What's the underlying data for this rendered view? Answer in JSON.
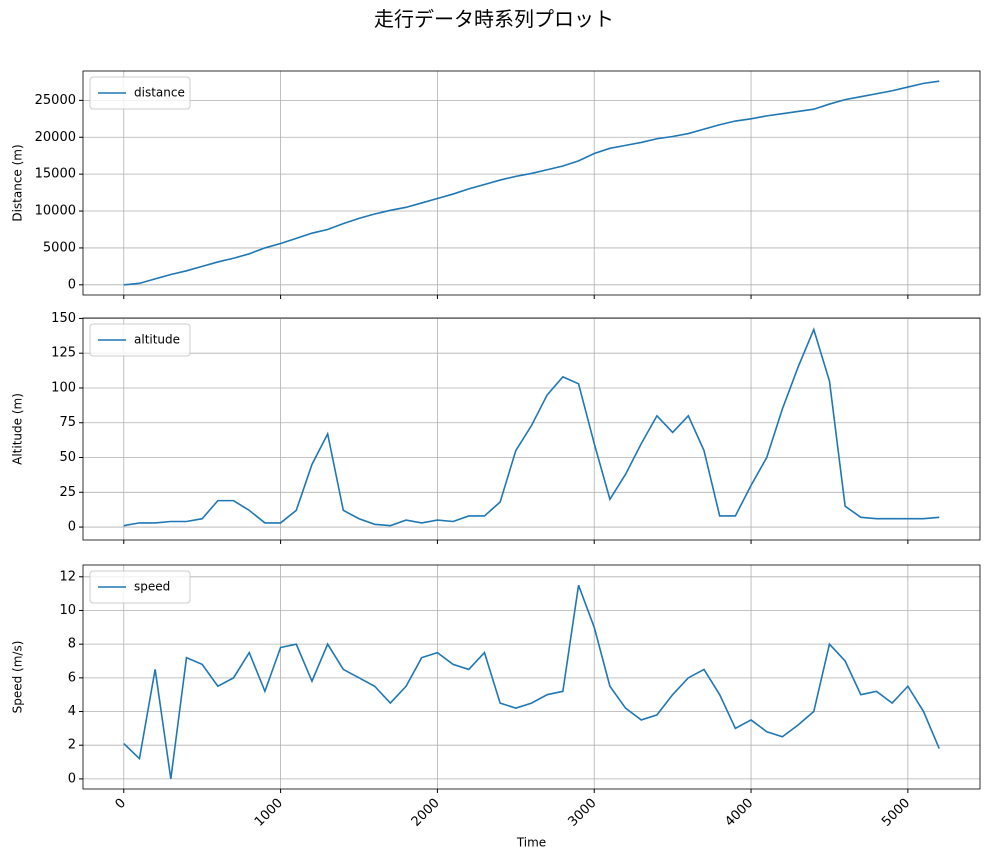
{
  "title": "走行データ時系列プロット",
  "chart_data": [
    {
      "type": "line",
      "ylabel": "Distance (m)",
      "legend": "upper left",
      "grid": true,
      "xlim": [
        -260,
        5460
      ],
      "xticks": [
        0,
        1000,
        2000,
        3000,
        4000,
        5000
      ],
      "ylim": [
        -1380,
        28980
      ],
      "yticks": [
        0,
        5000,
        10000,
        15000,
        20000,
        25000
      ],
      "x": [
        0,
        100,
        200,
        300,
        400,
        500,
        600,
        700,
        800,
        900,
        1000,
        1100,
        1200,
        1300,
        1400,
        1500,
        1600,
        1700,
        1800,
        1900,
        2000,
        2100,
        2200,
        2300,
        2400,
        2500,
        2600,
        2700,
        2800,
        2900,
        3000,
        3100,
        3200,
        3300,
        3400,
        3500,
        3600,
        3700,
        3800,
        3900,
        4000,
        4100,
        4200,
        4300,
        4400,
        4500,
        4600,
        4700,
        4800,
        4900,
        5000,
        5100,
        5200
      ],
      "series": [
        {
          "name": "distance",
          "color": "#1f77b4",
          "values": [
            0,
            200,
            800,
            1400,
            1900,
            2500,
            3100,
            3600,
            4200,
            5000,
            5600,
            6300,
            7000,
            7500,
            8300,
            9000,
            9600,
            10100,
            10500,
            11100,
            11700,
            12300,
            13000,
            13600,
            14200,
            14700,
            15100,
            15600,
            16100,
            16800,
            17800,
            18500,
            18900,
            19300,
            19800,
            20100,
            20500,
            21100,
            21700,
            22200,
            22500,
            22900,
            23200,
            23500,
            23800,
            24500,
            25100,
            25500,
            25900,
            26300,
            26800,
            27300,
            27600
          ]
        }
      ]
    },
    {
      "type": "line",
      "ylabel": "Altitude (m)",
      "legend": "upper left",
      "grid": true,
      "xlim": [
        -260,
        5460
      ],
      "xticks": [
        0,
        1000,
        2000,
        3000,
        4000,
        5000
      ],
      "ylim": [
        -9.3,
        150.3
      ],
      "yticks": [
        0,
        25,
        50,
        75,
        100,
        125,
        150
      ],
      "x": [
        0,
        100,
        200,
        300,
        400,
        500,
        600,
        700,
        800,
        900,
        1000,
        1100,
        1200,
        1300,
        1400,
        1500,
        1600,
        1700,
        1800,
        1900,
        2000,
        2100,
        2200,
        2300,
        2400,
        2500,
        2600,
        2700,
        2800,
        2900,
        3000,
        3100,
        3200,
        3300,
        3400,
        3500,
        3600,
        3700,
        3800,
        3900,
        4000,
        4100,
        4200,
        4300,
        4400,
        4500,
        4600,
        4700,
        4800,
        4900,
        5000,
        5100,
        5200
      ],
      "series": [
        {
          "name": "altitude",
          "color": "#1f77b4",
          "values": [
            1,
            3,
            3,
            4,
            4,
            6,
            19,
            19,
            12,
            3,
            3,
            12,
            45,
            67,
            12,
            6,
            2,
            1,
            5,
            3,
            5,
            4,
            8,
            8,
            18,
            55,
            73,
            95,
            108,
            103,
            60,
            20,
            38,
            60,
            80,
            68,
            80,
            55,
            8,
            8,
            30,
            50,
            85,
            115,
            142,
            105,
            15,
            7,
            6,
            6,
            6,
            6,
            7
          ]
        }
      ]
    },
    {
      "type": "line",
      "ylabel": "Speed (m/s)",
      "xlabel": "Time",
      "legend": "upper left",
      "grid": true,
      "xtick_labels": true,
      "xlim": [
        -260,
        5460
      ],
      "xticks": [
        0,
        1000,
        2000,
        3000,
        4000,
        5000
      ],
      "ylim": [
        -0.6,
        12.7
      ],
      "yticks": [
        0,
        2,
        4,
        6,
        8,
        10,
        12
      ],
      "x": [
        0,
        100,
        200,
        300,
        400,
        500,
        600,
        700,
        800,
        900,
        1000,
        1100,
        1200,
        1300,
        1400,
        1500,
        1600,
        1700,
        1800,
        1900,
        2000,
        2100,
        2200,
        2300,
        2400,
        2500,
        2600,
        2700,
        2800,
        2900,
        3000,
        3100,
        3200,
        3300,
        3400,
        3500,
        3600,
        3700,
        3800,
        3900,
        4000,
        4100,
        4200,
        4300,
        4400,
        4500,
        4600,
        4700,
        4800,
        4900,
        5000,
        5100,
        5200
      ],
      "series": [
        {
          "name": "speed",
          "color": "#1f77b4",
          "values": [
            2.1,
            1.2,
            6.5,
            0,
            7.2,
            6.8,
            5.5,
            6.0,
            7.5,
            5.2,
            7.8,
            8.0,
            5.8,
            8.0,
            6.5,
            6.0,
            5.5,
            4.5,
            5.5,
            7.2,
            7.5,
            6.8,
            6.5,
            7.5,
            4.5,
            4.2,
            4.5,
            5.0,
            5.2,
            11.5,
            9.0,
            5.5,
            4.2,
            3.5,
            3.8,
            5.0,
            6.0,
            6.5,
            5.0,
            3.0,
            3.5,
            2.8,
            2.5,
            3.2,
            4.0,
            8.0,
            7.0,
            5.0,
            5.2,
            4.5,
            5.5,
            4.0,
            1.8
          ]
        }
      ]
    }
  ]
}
